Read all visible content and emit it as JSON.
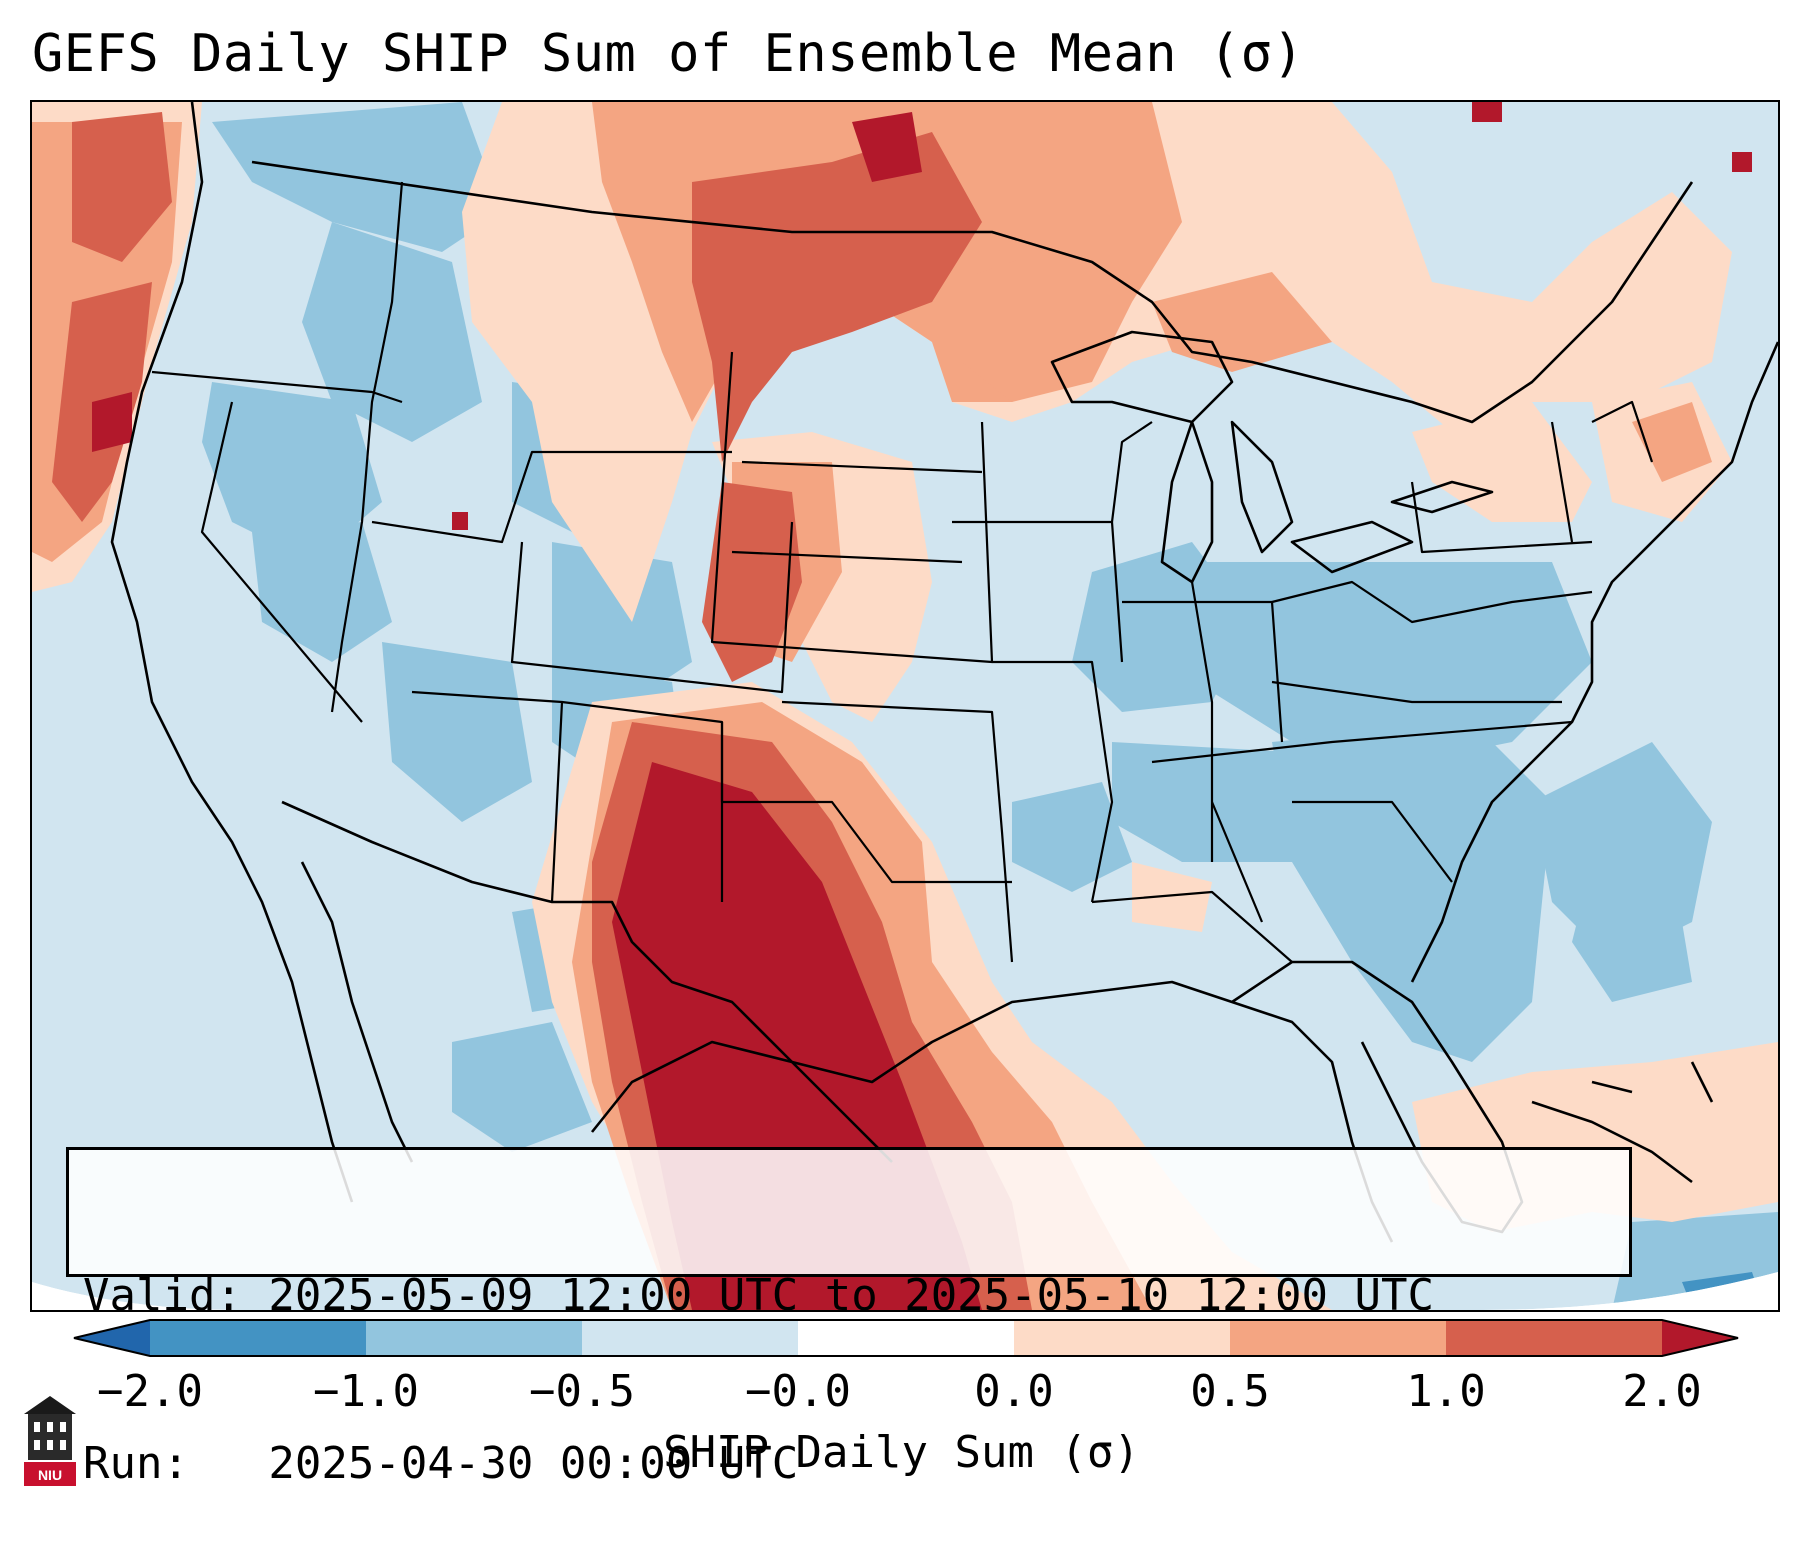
{
  "title": "GEFS Daily SHIP Sum of Ensemble Mean (σ)",
  "info": {
    "valid_line": "Valid: 2025-05-09 12:00 UTC to 2025-05-10 12:00 UTC",
    "run_line": "Run:   2025-04-30 00:00 UTC"
  },
  "colorbar": {
    "label": "SHIP Daily Sum (σ)",
    "ticks": [
      "−2.0",
      "−1.0",
      "−0.5",
      "−0.0",
      "0.0",
      "0.5",
      "1.0",
      "2.0"
    ],
    "colors": {
      "under": "#2166ac",
      "b1": "#4393c3",
      "b2": "#92c5de",
      "b3": "#d1e5f0",
      "b4": "#fddbc7",
      "b5": "#f4a582",
      "b6": "#d6604d",
      "over": "#b2182b"
    }
  },
  "map": {
    "projection": "lambert-conformal",
    "region": "CONUS",
    "background_color": "#d1e5f0"
  },
  "logo": {
    "text": "NIU",
    "color": "#c8102e"
  }
}
